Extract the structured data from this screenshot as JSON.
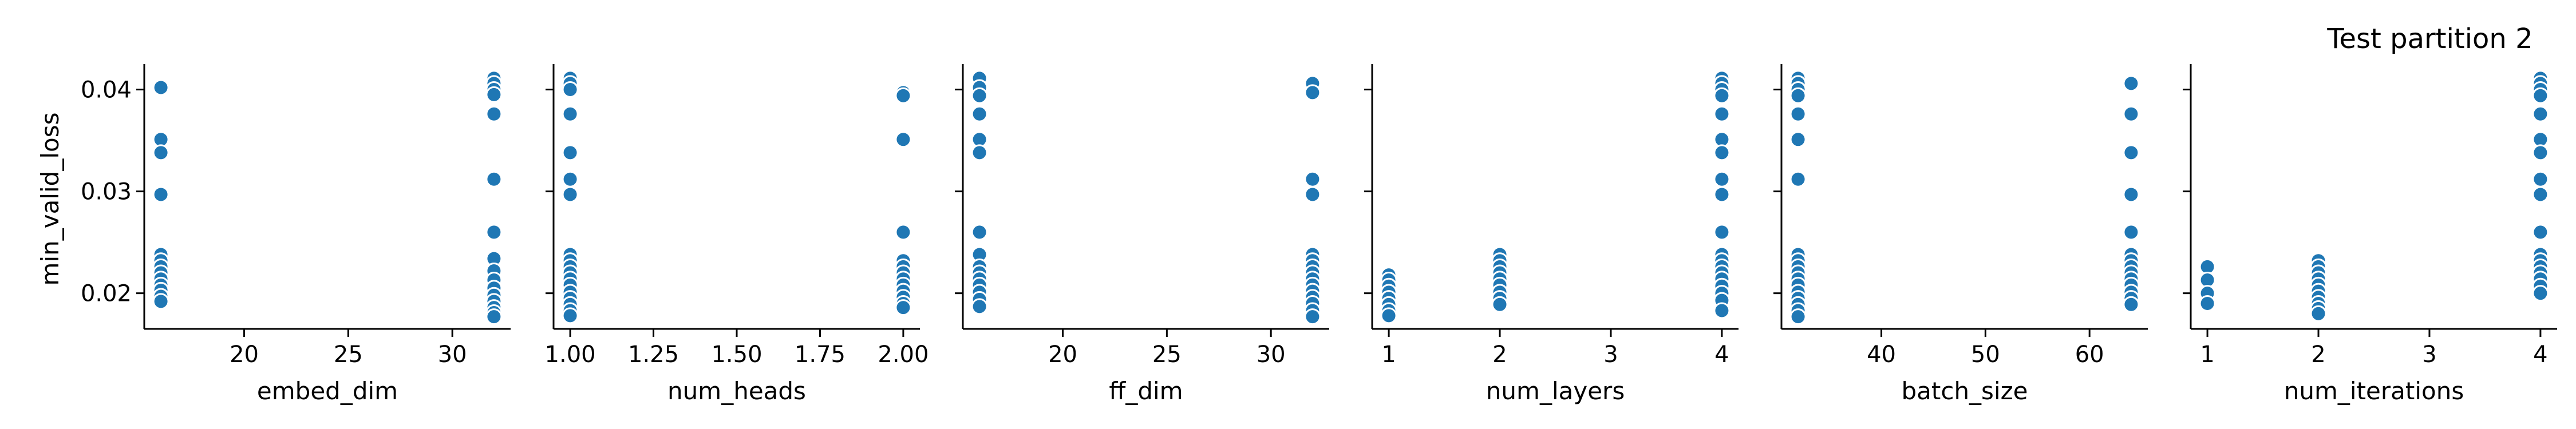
{
  "title": "Test partition 2",
  "ylabel": "min_valid_loss",
  "colors": {
    "marker": "#1f77b4",
    "marker_edge": "#ffffff",
    "axis": "#000000"
  },
  "chart_data": {
    "type": "scatter",
    "title": "Test partition 2",
    "ylabel": "min_valid_loss",
    "ylim": [
      0.0165,
      0.0425
    ],
    "yticks": [
      0.02,
      0.03,
      0.04
    ],
    "ytick_labels": [
      "0.02",
      "0.03",
      "0.04"
    ],
    "grid": false,
    "legend": "none",
    "panels": [
      {
        "xlabel": "embed_dim",
        "xlim": [
          15.2,
          32.8
        ],
        "xticks": [
          20,
          25,
          30
        ],
        "xtick_labels": [
          "20",
          "25",
          "30"
        ],
        "points": [
          [
            16,
            0.0402
          ],
          [
            16,
            0.0351
          ],
          [
            16,
            0.0338
          ],
          [
            16,
            0.0297
          ],
          [
            16,
            0.0238
          ],
          [
            16,
            0.0232
          ],
          [
            16,
            0.0226
          ],
          [
            16,
            0.022
          ],
          [
            16,
            0.0214
          ],
          [
            16,
            0.0208
          ],
          [
            16,
            0.0203
          ],
          [
            16,
            0.0197
          ],
          [
            16,
            0.0192
          ],
          [
            32,
            0.0411
          ],
          [
            32,
            0.0406
          ],
          [
            32,
            0.04
          ],
          [
            32,
            0.0395
          ],
          [
            32,
            0.0376
          ],
          [
            32,
            0.0312
          ],
          [
            32,
            0.026
          ],
          [
            32,
            0.0234
          ],
          [
            32,
            0.0222
          ],
          [
            32,
            0.0213
          ],
          [
            32,
            0.0205
          ],
          [
            32,
            0.0198
          ],
          [
            32,
            0.0192
          ],
          [
            32,
            0.0186
          ],
          [
            32,
            0.0181
          ],
          [
            32,
            0.0177
          ]
        ]
      },
      {
        "xlabel": "num_heads",
        "xlim": [
          0.95,
          2.05
        ],
        "xticks": [
          1.0,
          1.25,
          1.5,
          1.75,
          2.0
        ],
        "xtick_labels": [
          "1.00",
          "1.25",
          "1.50",
          "1.75",
          "2.00"
        ],
        "points": [
          [
            1,
            0.0411
          ],
          [
            1,
            0.0406
          ],
          [
            1,
            0.04
          ],
          [
            1,
            0.0376
          ],
          [
            1,
            0.0338
          ],
          [
            1,
            0.0312
          ],
          [
            1,
            0.0297
          ],
          [
            1,
            0.0238
          ],
          [
            1,
            0.0232
          ],
          [
            1,
            0.0226
          ],
          [
            1,
            0.022
          ],
          [
            1,
            0.0214
          ],
          [
            1,
            0.0208
          ],
          [
            1,
            0.0201
          ],
          [
            1,
            0.0195
          ],
          [
            1,
            0.0189
          ],
          [
            1,
            0.0183
          ],
          [
            1,
            0.0178
          ],
          [
            2,
            0.0397
          ],
          [
            2,
            0.0394
          ],
          [
            2,
            0.0351
          ],
          [
            2,
            0.026
          ],
          [
            2,
            0.0232
          ],
          [
            2,
            0.0226
          ],
          [
            2,
            0.022
          ],
          [
            2,
            0.0214
          ],
          [
            2,
            0.0208
          ],
          [
            2,
            0.0202
          ],
          [
            2,
            0.0196
          ],
          [
            2,
            0.019
          ],
          [
            2,
            0.0186
          ]
        ]
      },
      {
        "xlabel": "ff_dim",
        "xlim": [
          15.2,
          32.8
        ],
        "xticks": [
          20,
          25,
          30
        ],
        "xtick_labels": [
          "20",
          "25",
          "30"
        ],
        "points": [
          [
            16,
            0.0411
          ],
          [
            16,
            0.0402
          ],
          [
            16,
            0.0394
          ],
          [
            16,
            0.0376
          ],
          [
            16,
            0.0351
          ],
          [
            16,
            0.0338
          ],
          [
            16,
            0.026
          ],
          [
            16,
            0.0238
          ],
          [
            16,
            0.0226
          ],
          [
            16,
            0.022
          ],
          [
            16,
            0.0214
          ],
          [
            16,
            0.0208
          ],
          [
            16,
            0.0201
          ],
          [
            16,
            0.0194
          ],
          [
            16,
            0.0187
          ],
          [
            32,
            0.0406
          ],
          [
            32,
            0.0397
          ],
          [
            32,
            0.0312
          ],
          [
            32,
            0.0297
          ],
          [
            32,
            0.0238
          ],
          [
            32,
            0.0232
          ],
          [
            32,
            0.0226
          ],
          [
            32,
            0.022
          ],
          [
            32,
            0.0214
          ],
          [
            32,
            0.0208
          ],
          [
            32,
            0.0202
          ],
          [
            32,
            0.0196
          ],
          [
            32,
            0.019
          ],
          [
            32,
            0.0183
          ],
          [
            32,
            0.0177
          ]
        ]
      },
      {
        "xlabel": "num_layers",
        "xlim": [
          0.85,
          4.15
        ],
        "xticks": [
          1,
          2,
          3,
          4
        ],
        "xtick_labels": [
          "1",
          "2",
          "3",
          "4"
        ],
        "points": [
          [
            1,
            0.0218
          ],
          [
            1,
            0.0213
          ],
          [
            1,
            0.0207
          ],
          [
            1,
            0.0201
          ],
          [
            1,
            0.0195
          ],
          [
            1,
            0.0189
          ],
          [
            1,
            0.0183
          ],
          [
            1,
            0.0178
          ],
          [
            2,
            0.0238
          ],
          [
            2,
            0.0232
          ],
          [
            2,
            0.0226
          ],
          [
            2,
            0.022
          ],
          [
            2,
            0.0214
          ],
          [
            2,
            0.0208
          ],
          [
            2,
            0.0201
          ],
          [
            2,
            0.0195
          ],
          [
            2,
            0.0189
          ],
          [
            4,
            0.0411
          ],
          [
            4,
            0.0406
          ],
          [
            4,
            0.04
          ],
          [
            4,
            0.0394
          ],
          [
            4,
            0.0376
          ],
          [
            4,
            0.0351
          ],
          [
            4,
            0.0338
          ],
          [
            4,
            0.0312
          ],
          [
            4,
            0.0297
          ],
          [
            4,
            0.026
          ],
          [
            4,
            0.0238
          ],
          [
            4,
            0.0232
          ],
          [
            4,
            0.0226
          ],
          [
            4,
            0.022
          ],
          [
            4,
            0.0214
          ],
          [
            4,
            0.0207
          ],
          [
            4,
            0.02
          ],
          [
            4,
            0.0193
          ],
          [
            4,
            0.0183
          ]
        ]
      },
      {
        "xlabel": "batch_size",
        "xlim": [
          30.4,
          65.6
        ],
        "xticks": [
          40,
          50,
          60
        ],
        "xtick_labels": [
          "40",
          "50",
          "60"
        ],
        "points": [
          [
            32,
            0.0411
          ],
          [
            32,
            0.0406
          ],
          [
            32,
            0.04
          ],
          [
            32,
            0.0394
          ],
          [
            32,
            0.0376
          ],
          [
            32,
            0.0351
          ],
          [
            32,
            0.0312
          ],
          [
            32,
            0.0238
          ],
          [
            32,
            0.0232
          ],
          [
            32,
            0.0226
          ],
          [
            32,
            0.022
          ],
          [
            32,
            0.0214
          ],
          [
            32,
            0.0208
          ],
          [
            32,
            0.0201
          ],
          [
            32,
            0.0195
          ],
          [
            32,
            0.0189
          ],
          [
            32,
            0.0183
          ],
          [
            32,
            0.0177
          ],
          [
            64,
            0.0406
          ],
          [
            64,
            0.0376
          ],
          [
            64,
            0.0338
          ],
          [
            64,
            0.0297
          ],
          [
            64,
            0.026
          ],
          [
            64,
            0.0238
          ],
          [
            64,
            0.0232
          ],
          [
            64,
            0.0226
          ],
          [
            64,
            0.022
          ],
          [
            64,
            0.0214
          ],
          [
            64,
            0.0208
          ],
          [
            64,
            0.0201
          ],
          [
            64,
            0.0195
          ],
          [
            64,
            0.0189
          ]
        ]
      },
      {
        "xlabel": "num_iterations",
        "xlim": [
          0.85,
          4.15
        ],
        "xticks": [
          1,
          2,
          3,
          4
        ],
        "xtick_labels": [
          "1",
          "2",
          "3",
          "4"
        ],
        "points": [
          [
            1,
            0.0226
          ],
          [
            1,
            0.0213
          ],
          [
            1,
            0.02
          ],
          [
            1,
            0.019
          ],
          [
            2,
            0.0232
          ],
          [
            2,
            0.0226
          ],
          [
            2,
            0.022
          ],
          [
            2,
            0.0214
          ],
          [
            2,
            0.0208
          ],
          [
            2,
            0.0202
          ],
          [
            2,
            0.0196
          ],
          [
            2,
            0.019
          ],
          [
            2,
            0.0185
          ],
          [
            2,
            0.018
          ],
          [
            4,
            0.0411
          ],
          [
            4,
            0.0406
          ],
          [
            4,
            0.04
          ],
          [
            4,
            0.0394
          ],
          [
            4,
            0.0376
          ],
          [
            4,
            0.0351
          ],
          [
            4,
            0.0338
          ],
          [
            4,
            0.0312
          ],
          [
            4,
            0.0297
          ],
          [
            4,
            0.026
          ],
          [
            4,
            0.0238
          ],
          [
            4,
            0.0232
          ],
          [
            4,
            0.0226
          ],
          [
            4,
            0.022
          ],
          [
            4,
            0.0214
          ],
          [
            4,
            0.0207
          ],
          [
            4,
            0.02
          ]
        ]
      }
    ]
  }
}
